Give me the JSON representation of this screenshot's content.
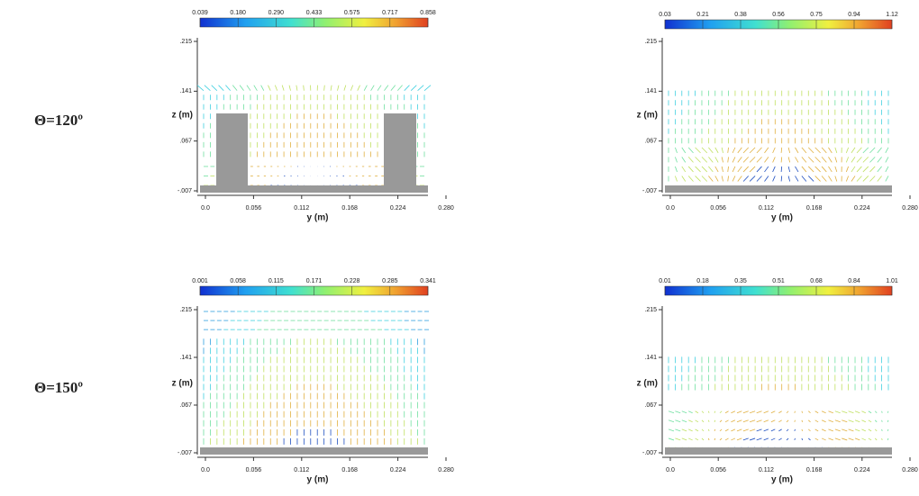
{
  "rows": [
    {
      "label": "Θ=120º",
      "panels": [
        {
          "colorbar_labels": [
            "0.039",
            "0.180",
            "0.290",
            "0.433",
            "0.575",
            "0.717",
            "0.858"
          ],
          "y_ticks": [
            ".215",
            ".141",
            ".067",
            "-.007"
          ],
          "z_label": "z (m)",
          "x_ticks": [
            "0.0",
            "0.056",
            "0.112",
            "0.168",
            "0.224",
            "0.280"
          ],
          "x_label": "y (m)"
        },
        {
          "colorbar_labels": [
            "0.03",
            "0.21",
            "0.38",
            "0.56",
            "0.75",
            "0.94",
            "1.12"
          ],
          "y_ticks": [
            ".215",
            ".141",
            ".067",
            "-.007"
          ],
          "z_label": "z (m)",
          "x_ticks": [
            "0.0",
            "0.056",
            "0.112",
            "0.168",
            "0.224",
            "0.280"
          ],
          "x_label": "y (m)"
        }
      ]
    },
    {
      "label": "Θ=150º",
      "panels": [
        {
          "colorbar_labels": [
            "0.001",
            "0.058",
            "0.115",
            "0.171",
            "0.228",
            "0.285",
            "0.341"
          ],
          "y_ticks": [
            ".215",
            ".141",
            ".067",
            "-.007"
          ],
          "z_label": "z (m)",
          "x_ticks": [
            "0.0",
            "0.056",
            "0.112",
            "0.168",
            "0.224",
            "0.280"
          ],
          "x_label": "y (m)"
        },
        {
          "colorbar_labels": [
            "0.01",
            "0.18",
            "0.35",
            "0.51",
            "0.68",
            "0.84",
            "1.01"
          ],
          "y_ticks": [
            ".215",
            ".141",
            ".067",
            "-.007"
          ],
          "z_label": "z (m)",
          "x_ticks": [
            "0.0",
            "0.056",
            "0.112",
            "0.168",
            "0.224",
            "0.280"
          ],
          "x_label": "y (m)"
        }
      ]
    }
  ]
}
